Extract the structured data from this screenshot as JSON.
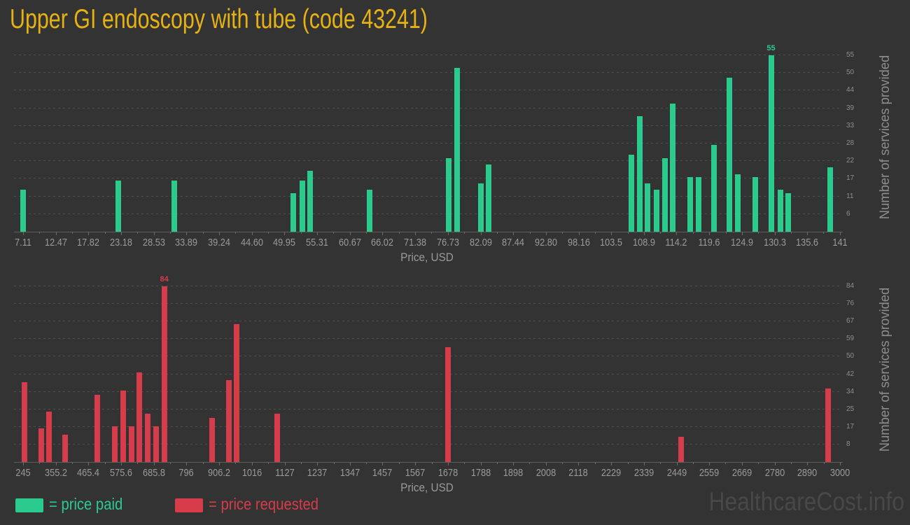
{
  "title": "Upper GI endoscopy with tube (code 43241)",
  "watermark": "HealthcareCost.info",
  "legend": {
    "paid_label": "= price paid",
    "requested_label": "= price requested"
  },
  "colors": {
    "background": "#333333",
    "title": "#e6b211",
    "price_paid": "#2bcb8e",
    "price_requested": "#d63c4a",
    "x_tick_label": "#9a9a9a",
    "y_tick_label": "#8f8f8f",
    "axis_title": "#9a9a9a",
    "gridline": "#4e4e4e",
    "axis_line": "#5e5e5e",
    "watermark_text": "#484848"
  },
  "chart_data": [
    {
      "type": "bar",
      "series_name": "price paid",
      "color": "#2bcb8e",
      "xlabel": "Price, USD",
      "ylabel": "Number of services provided",
      "x_tick_labels": [
        "7.11",
        "12.47",
        "17.82",
        "23.18",
        "28.53",
        "33.89",
        "39.24",
        "44.60",
        "49.95",
        "55.31",
        "60.67",
        "66.02",
        "71.38",
        "76.73",
        "82.09",
        "87.44",
        "92.80",
        "98.16",
        "103.5",
        "108.9",
        "114.2",
        "119.6",
        "124.9",
        "130.3",
        "135.6",
        "141"
      ],
      "y_ticks": [
        {
          "value": 5.5,
          "label": "6"
        },
        {
          "value": 11,
          "label": "11"
        },
        {
          "value": 16.5,
          "label": "17"
        },
        {
          "value": 22,
          "label": "22"
        },
        {
          "value": 27.5,
          "label": "28"
        },
        {
          "value": 33,
          "label": "33"
        },
        {
          "value": 38.5,
          "label": "39"
        },
        {
          "value": 44,
          "label": "44"
        },
        {
          "value": 49.5,
          "label": "50"
        },
        {
          "value": 55,
          "label": "55"
        }
      ],
      "x_range": {
        "min": 5.62,
        "max": 141.0
      },
      "ylim": [
        0,
        59.15
      ],
      "grid": true,
      "legend_position": "bottom",
      "bars": [
        {
          "price": 7.1,
          "count": 13
        },
        {
          "price": 22.7,
          "count": 16
        },
        {
          "price": 31.9,
          "count": 16
        },
        {
          "price": 51.4,
          "count": 12
        },
        {
          "price": 52.9,
          "count": 16
        },
        {
          "price": 54.2,
          "count": 19
        },
        {
          "price": 63.9,
          "count": 13
        },
        {
          "price": 76.9,
          "count": 23
        },
        {
          "price": 78.2,
          "count": 51
        },
        {
          "price": 82.1,
          "count": 15
        },
        {
          "price": 83.4,
          "count": 21
        },
        {
          "price": 106.8,
          "count": 24
        },
        {
          "price": 108.2,
          "count": 36
        },
        {
          "price": 109.5,
          "count": 15
        },
        {
          "price": 110.9,
          "count": 13
        },
        {
          "price": 112.3,
          "count": 23
        },
        {
          "price": 113.6,
          "count": 40
        },
        {
          "price": 116.4,
          "count": 17
        },
        {
          "price": 117.8,
          "count": 17
        },
        {
          "price": 120.3,
          "count": 27
        },
        {
          "price": 122.9,
          "count": 48
        },
        {
          "price": 124.3,
          "count": 18
        },
        {
          "price": 127.1,
          "count": 17
        },
        {
          "price": 129.7,
          "count": 55
        },
        {
          "price": 131.3,
          "count": 13
        },
        {
          "price": 132.5,
          "count": 12
        },
        {
          "price": 139.4,
          "count": 20
        }
      ],
      "max_value_label": {
        "text": "55",
        "price": 129.7,
        "count": 55
      }
    },
    {
      "type": "bar",
      "series_name": "price requested",
      "color": "#d63c4a",
      "xlabel": "Price, USD",
      "ylabel": "Number of services provided",
      "x_tick_labels": [
        "245",
        "355.2",
        "465.4",
        "575.6",
        "685.8",
        "796",
        "906.2",
        "1016",
        "1127",
        "1237",
        "1347",
        "1457",
        "1567",
        "1678",
        "1788",
        "1898",
        "2008",
        "2118",
        "2229",
        "2339",
        "2449",
        "2559",
        "2669",
        "2780",
        "2890",
        "3000"
      ],
      "y_ticks": [
        {
          "value": 8.4,
          "label": "8"
        },
        {
          "value": 16.8,
          "label": "17"
        },
        {
          "value": 25.2,
          "label": "25"
        },
        {
          "value": 33.6,
          "label": "34"
        },
        {
          "value": 42,
          "label": "42"
        },
        {
          "value": 50.4,
          "label": "50"
        },
        {
          "value": 58.8,
          "label": "59"
        },
        {
          "value": 67.2,
          "label": "67"
        },
        {
          "value": 75.6,
          "label": "76"
        },
        {
          "value": 84,
          "label": "84"
        }
      ],
      "x_range": {
        "min": 214.3,
        "max": 3000
      },
      "ylim": [
        0,
        88.7
      ],
      "grid": true,
      "legend_position": "bottom",
      "bars": [
        {
          "price": 250,
          "count": 38
        },
        {
          "price": 306,
          "count": 16
        },
        {
          "price": 333,
          "count": 24
        },
        {
          "price": 387,
          "count": 13
        },
        {
          "price": 495,
          "count": 32
        },
        {
          "price": 555,
          "count": 17
        },
        {
          "price": 582,
          "count": 34
        },
        {
          "price": 610,
          "count": 17
        },
        {
          "price": 638,
          "count": 43
        },
        {
          "price": 665,
          "count": 23
        },
        {
          "price": 693,
          "count": 17
        },
        {
          "price": 721,
          "count": 84
        },
        {
          "price": 882,
          "count": 21
        },
        {
          "price": 938,
          "count": 39
        },
        {
          "price": 965,
          "count": 66
        },
        {
          "price": 1101,
          "count": 23
        },
        {
          "price": 1678,
          "count": 55
        },
        {
          "price": 2465,
          "count": 12
        },
        {
          "price": 2960,
          "count": 35
        }
      ],
      "max_value_label": {
        "text": "84",
        "price": 721,
        "count": 84
      }
    }
  ]
}
